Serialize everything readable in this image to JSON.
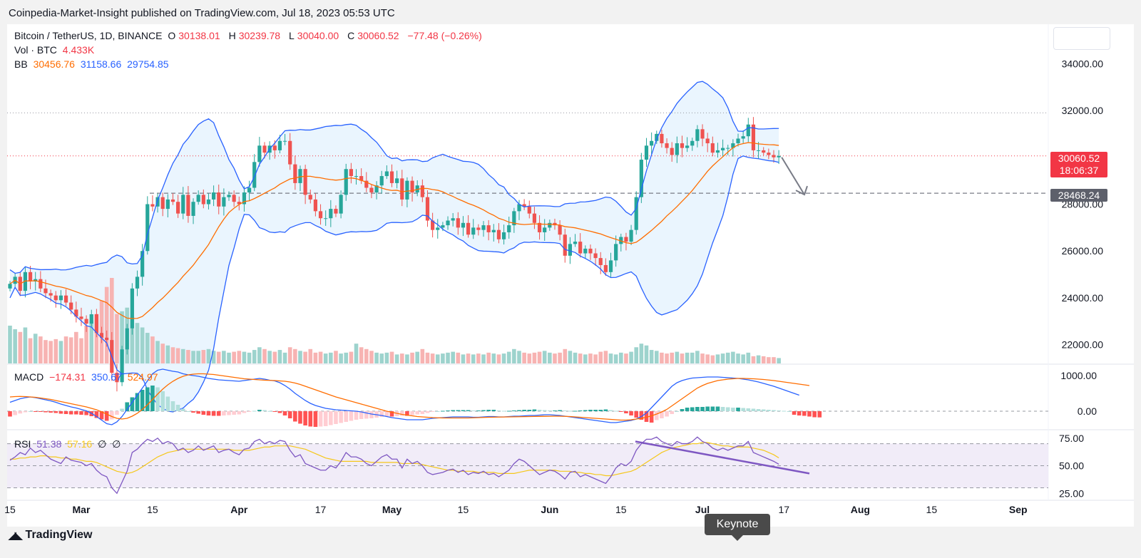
{
  "header": {
    "published": "Coinpedia-Market-Insight published on TradingView.com, Jul 18, 2023 05:53 UTC"
  },
  "legend": {
    "symbol": "Bitcoin / TetherUS, 1D, BINANCE",
    "o_label": "O",
    "o": "30138.01",
    "h_label": "H",
    "h": "30239.78",
    "l_label": "L",
    "l": "30040.00",
    "c_label": "C",
    "c": "30060.52",
    "change": "−77.48 (−0.26%)",
    "vol_label": "Vol · BTC",
    "vol": "4.433K",
    "bb_label": "BB",
    "bb_basis": "30456.76",
    "bb_upper": "31158.66",
    "bb_lower": "29754.85",
    "macd_label": "MACD",
    "macd_hist": "−174.31",
    "macd_line": "350.67",
    "macd_signal": "524.97",
    "rsi_label": "RSI",
    "rsi": "51.38",
    "rsi_ma": "57.16",
    "rsi_extra1": "∅",
    "rsi_extra2": "∅"
  },
  "price_tags": {
    "last_price": "30060.52",
    "countdown": "18:06:37",
    "support": "28468.24"
  },
  "footer": {
    "logo": "TradingView",
    "keynote": "Keynote"
  },
  "colors": {
    "up": "#26a69a",
    "down": "#ef5350",
    "bb": "#2962ff",
    "basis": "#ff6d00",
    "rsi": "#7e57c2",
    "rsi_ma": "#f5c71a"
  },
  "chart_data": [
    {
      "type": "line",
      "panel": "price",
      "y_ticks": [
        34000,
        32000,
        28000,
        26000,
        24000,
        22000
      ],
      "y_tick_labels": [
        "34000.00",
        "32000.00",
        "28000.00",
        "26000.00",
        "24000.00",
        "22000.00"
      ],
      "ylim": [
        21200,
        35500
      ],
      "x_labels": [
        "15",
        "Mar",
        "15",
        "Apr",
        "17",
        "May",
        "15",
        "Jun",
        "15",
        "Jul",
        "17",
        "Aug",
        "15",
        "Sep"
      ],
      "x_label_days": [
        0,
        14,
        28,
        45,
        61,
        75,
        89,
        106,
        120,
        136,
        152,
        167,
        181,
        198
      ],
      "support_level": 28468.24,
      "resistance_level": 31900,
      "last_price": 30060.52,
      "close": [
        24600,
        24900,
        24300,
        25100,
        24700,
        24800,
        24400,
        24200,
        24100,
        23900,
        24100,
        23800,
        23500,
        23200,
        23100,
        22900,
        23300,
        22500,
        22300,
        22200,
        20800,
        20400,
        21800,
        22700,
        24400,
        24900,
        26000,
        28000,
        27900,
        28300,
        27800,
        28200,
        28100,
        27600,
        28400,
        27500,
        28100,
        28400,
        28000,
        28200,
        28500,
        27900,
        28300,
        28400,
        28100,
        28000,
        28500,
        28700,
        29800,
        30500,
        30200,
        30500,
        30300,
        30700,
        30700,
        29700,
        28900,
        29500,
        28400,
        28200,
        27700,
        27400,
        27400,
        27800,
        27600,
        28400,
        29500,
        29200,
        29200,
        29000,
        28700,
        28500,
        28800,
        29200,
        29400,
        28900,
        29100,
        28200,
        29000,
        28500,
        28800,
        28300,
        27300,
        26900,
        27000,
        27100,
        27300,
        27400,
        27000,
        27200,
        26700,
        27000,
        26900,
        27100,
        26800,
        26900,
        26500,
        26800,
        27100,
        27700,
        28000,
        27900,
        27600,
        27200,
        26800,
        27000,
        27200,
        27100,
        26700,
        25800,
        26300,
        26400,
        25900,
        26100,
        25900,
        25700,
        25400,
        25100,
        25600,
        26300,
        26600,
        26400,
        26900,
        28300,
        29900,
        30500,
        30700,
        31000,
        30600,
        30400,
        30100,
        30600,
        30400,
        30500,
        30700,
        31200,
        30800,
        30600,
        30200,
        30300,
        30400,
        30400,
        30600,
        30800,
        30900,
        31400,
        30300,
        30300,
        30200,
        30100,
        30000,
        30060
      ],
      "volume": [
        42,
        38,
        35,
        40,
        28,
        33,
        30,
        26,
        25,
        27,
        25,
        30,
        29,
        35,
        28,
        42,
        48,
        55,
        70,
        85,
        95,
        55,
        58,
        62,
        52,
        45,
        40,
        34,
        30,
        25,
        22,
        20,
        18,
        17,
        16,
        15,
        14,
        14,
        15,
        16,
        14,
        13,
        14,
        12,
        13,
        14,
        13,
        12,
        15,
        18,
        16,
        14,
        13,
        15,
        12,
        18,
        16,
        14,
        13,
        16,
        12,
        13,
        11,
        12,
        14,
        11,
        12,
        13,
        22,
        18,
        16,
        14,
        12,
        11,
        12,
        13,
        10,
        11,
        10,
        12,
        13,
        16,
        12,
        11,
        10,
        11,
        12,
        13,
        12,
        10,
        11,
        10,
        11,
        10,
        12,
        11,
        10,
        11,
        13,
        16,
        14,
        12,
        11,
        12,
        13,
        14,
        12,
        11,
        12,
        16,
        14,
        12,
        11,
        10,
        11,
        10,
        13,
        14,
        11,
        10,
        12,
        11,
        13,
        18,
        22,
        20,
        15,
        14,
        12,
        11,
        12,
        13,
        11,
        12,
        12,
        14,
        11,
        10,
        9,
        10,
        11,
        12,
        13,
        11,
        10,
        12,
        8,
        9,
        8,
        7,
        7,
        6
      ]
    },
    {
      "type": "line",
      "panel": "macd",
      "y_tick_labels": [
        "1000.00",
        "0.00"
      ],
      "ylim": [
        -500,
        1300
      ],
      "series": [
        {
          "values": [
            250,
            300,
            350,
            380,
            400,
            380,
            350,
            320,
            290,
            250,
            200,
            160,
            120,
            90,
            50,
            10,
            -60,
            -150,
            -250,
            -350,
            -380,
            -300,
            -150,
            50,
            250,
            450,
            650,
            850,
            1050,
            1150,
            1180,
            1150,
            1120,
            1100,
            1050,
            1020,
            1000,
            980,
            950,
            920,
            900,
            880,
            870,
            860,
            850,
            840,
            860,
            880,
            900,
            920,
            900,
            870,
            850,
            800,
            720,
            620,
            500,
            400,
            300,
            220,
            160,
            120,
            80,
            60,
            40,
            30,
            20,
            10,
            0,
            -20,
            -50,
            -80,
            -100,
            -120,
            -150,
            -180,
            -200,
            -220,
            -240,
            -240,
            -240,
            -240,
            -220,
            -200,
            -190,
            -180,
            -170,
            -160,
            -160,
            -160,
            -160,
            -170,
            -170,
            -160,
            -150,
            -150,
            -160,
            -160,
            -150,
            -140,
            -140,
            -130,
            -120,
            -120,
            -110,
            -100,
            -100,
            -110,
            -120,
            -140,
            -160,
            -180,
            -200,
            -220,
            -240,
            -260,
            -280,
            -300,
            -320,
            -320,
            -300,
            -280,
            -260,
            -220,
            -150,
            -50,
            100,
            250,
            400,
            550,
            700,
            800,
            860,
            900,
            930,
            940,
            950,
            960,
            960,
            960,
            950,
            940,
            930,
            920,
            900,
            880,
            850,
            820,
            780,
            740,
            700,
            650,
            600,
            550,
            500,
            450
          ]
        },
        {
          "values": [
            400,
            410,
            415,
            410,
            400,
            390,
            370,
            350,
            330,
            300,
            270,
            240,
            210,
            180,
            150,
            120,
            80,
            40,
            -20,
            -80,
            -150,
            -200,
            -220,
            -200,
            -140,
            -60,
            50,
            180,
            330,
            480,
            620,
            740,
            840,
            920,
            980,
            1020,
            1040,
            1050,
            1050,
            1040,
            1030,
            1010,
            990,
            970,
            950,
            930,
            910,
            900,
            890,
            880,
            870,
            865,
            860,
            850,
            840,
            820,
            790,
            750,
            700,
            650,
            600,
            550,
            500,
            450,
            400,
            360,
            320,
            280,
            240,
            200,
            160,
            120,
            80,
            40,
            0,
            -30,
            -60,
            -90,
            -110,
            -130,
            -150,
            -160,
            -170,
            -180,
            -185,
            -190,
            -190,
            -190,
            -190,
            -190,
            -190,
            -185,
            -180,
            -175,
            -170,
            -168,
            -165,
            -162,
            -160,
            -158,
            -155,
            -152,
            -150,
            -148,
            -146,
            -144,
            -142,
            -140,
            -140,
            -145,
            -150,
            -160,
            -170,
            -180,
            -190,
            -200,
            -210,
            -220,
            -230,
            -240,
            -250,
            -250,
            -240,
            -220,
            -200,
            -170,
            -130,
            -80,
            -20,
            50,
            150,
            250,
            350,
            450,
            550,
            650,
            720,
            780,
            820,
            860,
            880,
            900,
            910,
            920,
            920,
            915,
            910,
            900,
            890,
            875,
            860,
            840,
            820,
            800,
            780,
            760,
            740,
            720
          ]
        },
        {
          "values": [
            -150,
            -110,
            -65,
            -30,
            0,
            -10,
            -20,
            -30,
            -40,
            -50,
            -70,
            -80,
            -90,
            -90,
            -100,
            -110,
            -140,
            -190,
            -230,
            -270,
            -230,
            -100,
            70,
            250,
            390,
            510,
            600,
            670,
            720,
            670,
            560,
            410,
            280,
            180,
            70,
            0,
            -40,
            -70,
            -100,
            -120,
            -130,
            -130,
            -120,
            -110,
            -100,
            -90,
            -50,
            -20,
            10,
            40,
            30,
            5,
            -10,
            -50,
            -120,
            -200,
            -290,
            -350,
            -400,
            -430,
            -440,
            -430,
            -420,
            -390,
            -360,
            -330,
            -300,
            -270,
            -240,
            -220,
            -210,
            -200,
            -180,
            -160,
            -150,
            -150,
            -140,
            -130,
            -130,
            -110,
            -90,
            -80,
            -50,
            -20,
            0,
            10,
            20,
            30,
            30,
            30,
            30,
            20,
            20,
            30,
            40,
            40,
            20,
            10,
            10,
            20,
            30,
            40,
            40,
            50,
            40,
            30,
            20,
            20,
            30,
            20,
            10,
            10,
            20,
            30,
            40,
            40,
            40,
            50,
            30,
            10,
            -20,
            -60,
            -120,
            -180,
            -240,
            -300,
            -320,
            -250,
            -200,
            -150,
            -80,
            0,
            60,
            100,
            110,
            120,
            120,
            130,
            130,
            130,
            120,
            110,
            100,
            100,
            90,
            80,
            70,
            60,
            50,
            40,
            30,
            20,
            10,
            0,
            -100,
            -120,
            -130,
            -150,
            -170,
            -174
          ]
        }
      ]
    },
    {
      "type": "line",
      "panel": "rsi",
      "y_tick_labels": [
        "75.00",
        "50.00",
        "25.00"
      ],
      "ylim": [
        20,
        82
      ],
      "bands": [
        70,
        50,
        30
      ],
      "series": [
        {
          "values": [
            55,
            58,
            62,
            60,
            66,
            62,
            64,
            60,
            56,
            54,
            52,
            58,
            55,
            54,
            53,
            50,
            52,
            46,
            42,
            40,
            30,
            25,
            35,
            45,
            62,
            65,
            70,
            74,
            72,
            75,
            70,
            72,
            70,
            64,
            66,
            62,
            64,
            68,
            64,
            66,
            68,
            62,
            64,
            65,
            62,
            60,
            65,
            66,
            72,
            74,
            70,
            72,
            70,
            73,
            72,
            64,
            58,
            60,
            52,
            50,
            48,
            46,
            46,
            50,
            48,
            54,
            62,
            58,
            58,
            56,
            52,
            50,
            54,
            58,
            60,
            56,
            56,
            48,
            56,
            52,
            54,
            50,
            44,
            42,
            43,
            44,
            46,
            47,
            44,
            46,
            42,
            44,
            43,
            45,
            42,
            43,
            40,
            43,
            46,
            52,
            56,
            54,
            50,
            46,
            42,
            44,
            46,
            45,
            42,
            38,
            44,
            45,
            40,
            42,
            40,
            38,
            36,
            34,
            40,
            48,
            52,
            50,
            54,
            64,
            70,
            74,
            74,
            76,
            72,
            70,
            68,
            72,
            70,
            70,
            72,
            76,
            72,
            70,
            66,
            64,
            66,
            64,
            66,
            68,
            68,
            72,
            62,
            60,
            58,
            56,
            54,
            51.38
          ]
        },
        {
          "values": [
            56,
            56,
            57,
            57,
            58,
            58,
            59,
            59,
            58,
            58,
            57,
            57,
            56,
            56,
            55,
            54,
            54,
            53,
            51,
            49,
            47,
            45,
            44,
            43,
            44,
            46,
            49,
            52,
            55,
            58,
            60,
            62,
            63,
            64,
            65,
            65,
            65,
            65,
            65,
            65,
            65,
            65,
            65,
            65,
            64,
            64,
            64,
            64,
            65,
            66,
            67,
            67,
            68,
            68,
            68,
            68,
            67,
            66,
            65,
            63,
            61,
            59,
            57,
            56,
            55,
            54,
            54,
            54,
            54,
            54,
            54,
            53,
            53,
            53,
            53,
            53,
            53,
            52,
            52,
            52,
            52,
            51,
            50,
            49,
            48,
            47,
            46,
            46,
            45,
            45,
            45,
            45,
            44,
            44,
            44,
            44,
            43,
            43,
            43,
            43,
            44,
            45,
            46,
            46,
            46,
            46,
            46,
            46,
            45,
            45,
            45,
            44,
            44,
            43,
            43,
            42,
            42,
            41,
            41,
            42,
            43,
            44,
            45,
            47,
            50,
            53,
            56,
            59,
            62,
            64,
            66,
            67,
            68,
            69,
            70,
            70,
            71,
            71,
            70,
            69,
            68,
            68,
            67,
            67,
            67,
            67,
            66,
            65,
            64,
            62,
            60,
            57.16
          ]
        }
      ]
    }
  ]
}
